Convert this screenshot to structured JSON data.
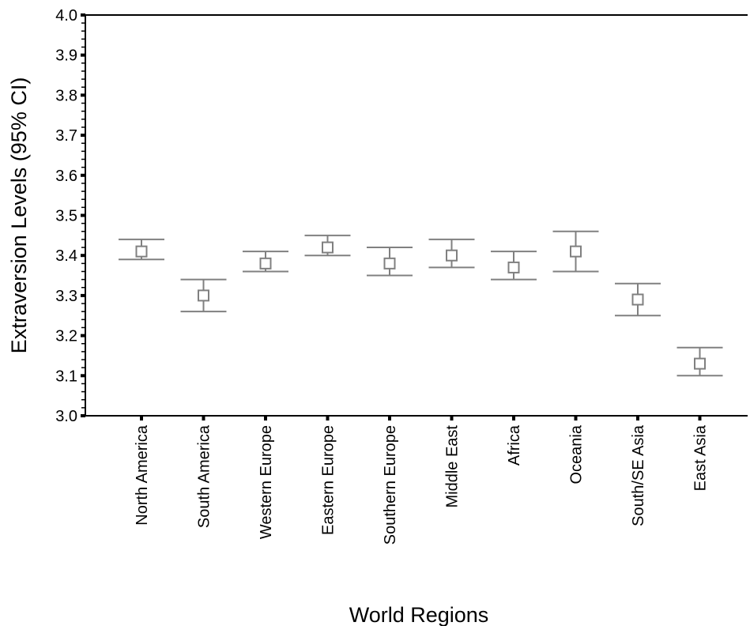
{
  "chart_data": {
    "type": "error-bar",
    "xlabel": "World Regions",
    "ylabel": "Extraversion Levels (95% CI)",
    "ylim": [
      3.0,
      4.0
    ],
    "yticks": [
      "3.0",
      "3.1",
      "3.2",
      "3.3",
      "3.4",
      "3.5",
      "3.6",
      "3.7",
      "3.8",
      "3.9",
      "4.0"
    ],
    "categories": [
      "North America",
      "South America",
      "Western Europe",
      "Eastern Europe",
      "Southern Europe",
      "Middle East",
      "Africa",
      "Oceania",
      "South/SE Asia",
      "East Asia"
    ],
    "mean": [
      3.41,
      3.3,
      3.38,
      3.42,
      3.38,
      3.4,
      3.37,
      3.41,
      3.29,
      3.13
    ],
    "lower": [
      3.39,
      3.26,
      3.36,
      3.4,
      3.35,
      3.37,
      3.34,
      3.36,
      3.25,
      3.1
    ],
    "upper": [
      3.44,
      3.34,
      3.41,
      3.45,
      3.42,
      3.44,
      3.41,
      3.46,
      3.33,
      3.17
    ],
    "marker_color": "#808080",
    "grid": false
  }
}
